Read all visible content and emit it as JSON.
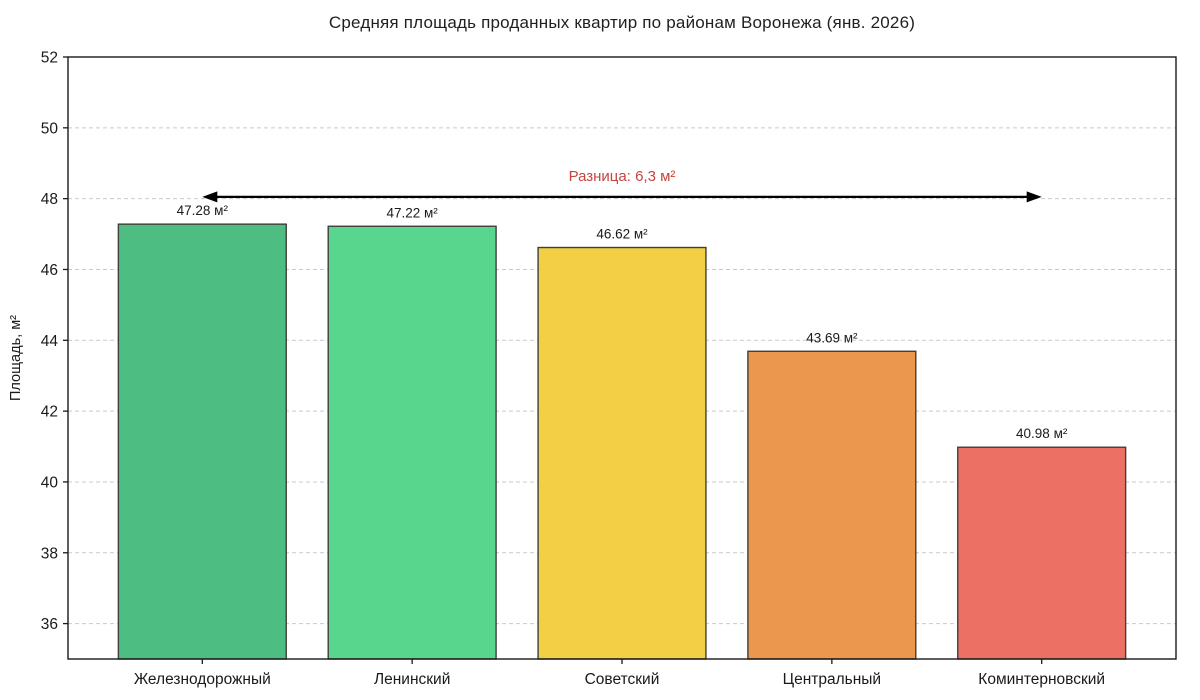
{
  "chart_data": {
    "type": "bar",
    "title": "Средняя площадь проданных квартир по районам Воронежа (янв. 2026)",
    "xlabel": "",
    "ylabel": "Площадь, м²",
    "categories": [
      "Железнодорожный",
      "Ленинский",
      "Советский",
      "Центральный",
      "Коминтерновский"
    ],
    "values": [
      47.28,
      47.22,
      46.62,
      43.69,
      40.98
    ],
    "value_labels": [
      "47.28 м²",
      "47.22 м²",
      "46.62 м²",
      "43.69 м²",
      "40.98 м²"
    ],
    "bar_colors": [
      "#4ebd81",
      "#58d68d",
      "#f2cf45",
      "#eb984e",
      "#ec7063"
    ],
    "bar_edge_color": "#3f3f3a",
    "ylim": [
      35,
      52
    ],
    "yticks": [
      36,
      38,
      40,
      42,
      44,
      46,
      48,
      50,
      52
    ],
    "grid": "horizontal-dashed",
    "legend": "none",
    "annotation": {
      "text": "Разница: 6,3 м²",
      "color": "#c4453f",
      "arrow_color": "#000000",
      "arrow_y": 48.05,
      "from_bar": 0,
      "to_bar": 4
    },
    "layout": {
      "x_pad_units": 0.64,
      "bar_width_units": 0.8
    }
  },
  "colors": {
    "background": "#ffffff",
    "grid": "#c9c9c9",
    "axis": "#1a1a1a",
    "text": "#1a1a1a"
  }
}
